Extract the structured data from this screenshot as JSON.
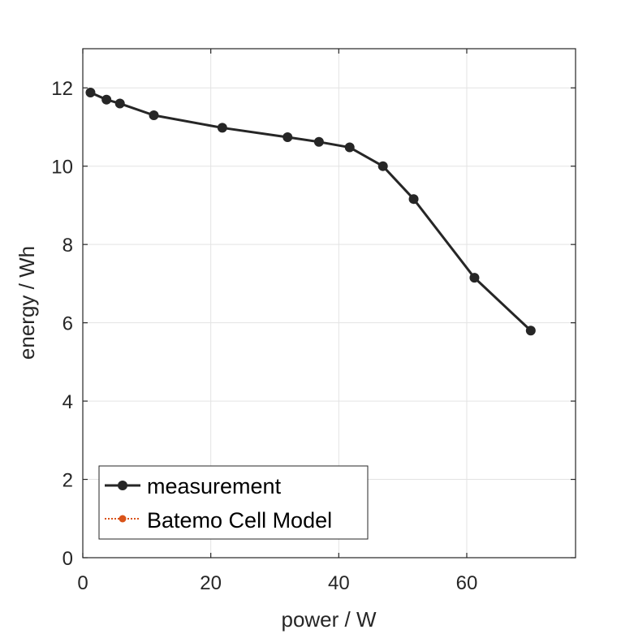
{
  "chart_data": {
    "type": "line",
    "xlabel": "power / W",
    "ylabel": "energy / Wh",
    "xlim": [
      0,
      77
    ],
    "ylim": [
      0,
      13
    ],
    "xticks": [
      0,
      20,
      40,
      60
    ],
    "yticks": [
      0,
      2,
      4,
      6,
      8,
      10,
      12
    ],
    "grid": true,
    "legend_position": "bottom-left",
    "series": [
      {
        "name": "measurement",
        "color": "#262626",
        "marker": "circle",
        "line_style": "solid",
        "x": [
          1.2,
          3.7,
          5.8,
          11.1,
          21.8,
          32.0,
          36.9,
          41.7,
          46.9,
          51.7,
          61.2,
          70.0
        ],
        "y": [
          11.88,
          11.7,
          11.6,
          11.3,
          10.98,
          10.74,
          10.62,
          10.48,
          10.0,
          9.16,
          7.15,
          5.8
        ]
      },
      {
        "name": "Batemo Cell Model",
        "color": "#D95319",
        "marker": "circle",
        "line_style": "dotted",
        "x": [],
        "y": []
      }
    ]
  }
}
